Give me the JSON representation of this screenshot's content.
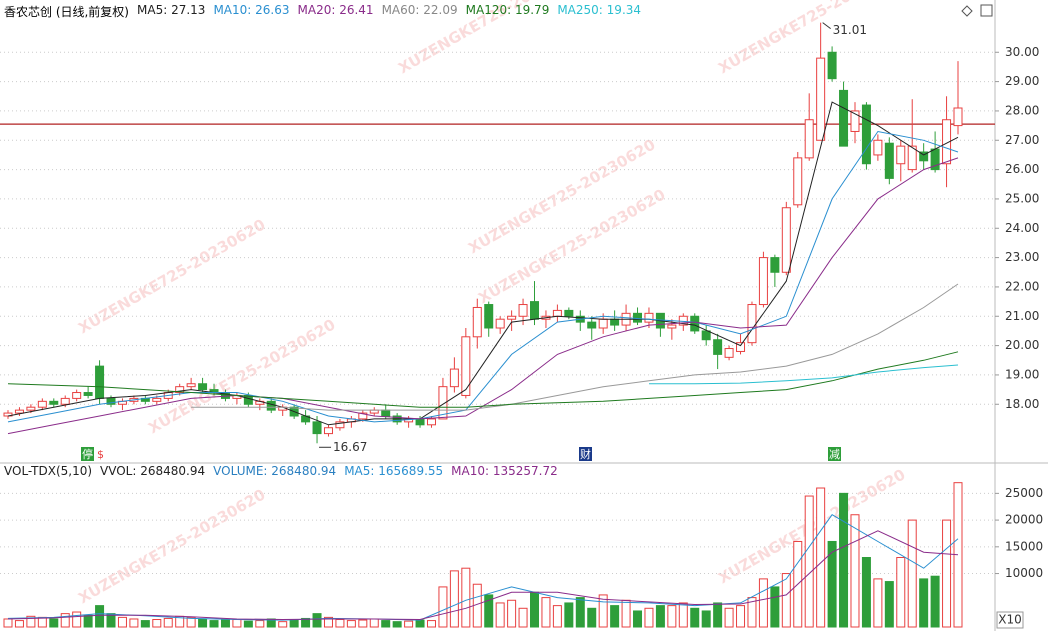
{
  "chart_data": {
    "type": "candlestick",
    "title": "香农芯创 (日线,前复权)",
    "watermark": "XUZENGKE725-20230620",
    "indicators": [
      {
        "name": "MA5:",
        "value": 27.13,
        "color": "#222222"
      },
      {
        "name": "MA10:",
        "value": 26.63,
        "color": "#2a8fd0"
      },
      {
        "name": "MA20:",
        "value": 26.41,
        "color": "#8a2c8a"
      },
      {
        "name": "MA60:",
        "value": 22.09,
        "color": "#888888"
      },
      {
        "name": "MA120:",
        "value": 19.79,
        "color": "#1f7a1f"
      },
      {
        "name": "MA250:",
        "value": 19.34,
        "color": "#2bbfd0"
      }
    ],
    "up_color": "#e84040",
    "down_color": "#2e9e3a",
    "open": [
      17.6,
      17.7,
      17.8,
      17.9,
      18.1,
      18.0,
      18.2,
      18.4,
      19.3,
      18.2,
      18.0,
      18.1,
      18.2,
      18.1,
      18.2,
      18.4,
      18.6,
      18.7,
      18.5,
      18.4,
      18.2,
      18.3,
      18.0,
      18.1,
      17.8,
      17.9,
      17.6,
      17.4,
      17.0,
      17.2,
      17.4,
      17.5,
      17.7,
      17.8,
      17.6,
      17.4,
      17.5,
      17.3,
      17.5,
      18.6,
      18.3,
      20.3,
      21.4,
      20.6,
      20.9,
      21.0,
      21.5,
      20.9,
      21.0,
      21.2,
      21.0,
      20.8,
      20.6,
      20.9,
      20.7,
      21.1,
      20.8,
      21.1,
      20.6,
      20.7,
      21.0,
      20.5,
      20.2,
      19.6,
      19.8,
      20.1,
      21.4,
      23.0,
      22.5,
      24.8,
      26.4,
      27.0,
      30.0,
      28.7,
      27.3,
      28.2,
      26.5,
      26.9,
      26.2,
      26.0,
      26.6,
      26.7,
      26.2,
      27.5
    ],
    "high": [
      17.8,
      17.9,
      18.0,
      18.2,
      18.2,
      18.3,
      18.5,
      18.6,
      19.5,
      18.3,
      18.2,
      18.3,
      18.3,
      18.3,
      18.5,
      18.7,
      18.9,
      18.9,
      18.7,
      18.5,
      18.4,
      18.4,
      18.2,
      18.2,
      18.0,
      18.0,
      17.8,
      17.6,
      17.3,
      17.5,
      17.6,
      17.8,
      17.9,
      18.0,
      17.7,
      17.6,
      17.6,
      17.6,
      18.9,
      19.6,
      20.6,
      21.6,
      21.5,
      21.0,
      21.2,
      21.6,
      22.2,
      21.2,
      21.4,
      21.3,
      21.2,
      21.0,
      21.1,
      21.2,
      21.4,
      21.3,
      21.3,
      21.1,
      20.9,
      21.1,
      21.1,
      20.7,
      20.4,
      20.0,
      20.4,
      21.5,
      23.2,
      23.1,
      24.9,
      26.6,
      28.6,
      31.01,
      30.2,
      29.0,
      28.3,
      28.3,
      27.2,
      27.1,
      27.0,
      28.4,
      26.9,
      27.3,
      28.5,
      29.7
    ],
    "low": [
      17.5,
      17.6,
      17.7,
      17.8,
      17.9,
      17.9,
      18.1,
      18.2,
      18.0,
      17.9,
      17.8,
      18.0,
      18.0,
      18.0,
      18.1,
      18.3,
      18.5,
      18.4,
      18.3,
      18.1,
      18.0,
      17.9,
      17.8,
      17.7,
      17.6,
      17.5,
      17.3,
      16.67,
      16.9,
      17.1,
      17.2,
      17.4,
      17.6,
      17.5,
      17.3,
      17.2,
      17.2,
      17.2,
      17.5,
      18.4,
      18.2,
      19.9,
      20.3,
      20.4,
      20.5,
      20.7,
      20.7,
      20.6,
      20.8,
      20.9,
      20.5,
      20.2,
      20.4,
      20.5,
      20.5,
      20.7,
      20.6,
      20.3,
      20.2,
      20.5,
      20.4,
      20.0,
      19.2,
      19.5,
      19.7,
      20.0,
      21.3,
      22.0,
      22.4,
      24.7,
      26.3,
      27.0,
      29.0,
      26.8,
      26.9,
      26.0,
      26.3,
      25.5,
      25.6,
      25.9,
      26.0,
      25.9,
      25.4,
      27.2
    ],
    "close": [
      17.7,
      17.8,
      17.9,
      18.1,
      18.0,
      18.2,
      18.4,
      18.3,
      18.2,
      18.0,
      18.1,
      18.2,
      18.1,
      18.2,
      18.4,
      18.6,
      18.7,
      18.5,
      18.4,
      18.2,
      18.3,
      18.0,
      18.1,
      17.8,
      17.9,
      17.6,
      17.4,
      17.0,
      17.2,
      17.4,
      17.5,
      17.7,
      17.8,
      17.6,
      17.4,
      17.5,
      17.3,
      17.5,
      18.6,
      19.2,
      20.3,
      21.3,
      20.6,
      20.9,
      21.0,
      21.4,
      20.9,
      21.0,
      21.2,
      21.0,
      20.8,
      20.6,
      20.9,
      20.7,
      21.1,
      20.8,
      21.1,
      20.6,
      20.7,
      21.0,
      20.5,
      20.2,
      19.7,
      19.9,
      20.1,
      21.4,
      23.0,
      22.5,
      24.7,
      26.4,
      27.7,
      29.8,
      29.1,
      26.8,
      28.0,
      26.2,
      27.0,
      25.7,
      26.8,
      26.8,
      26.3,
      26.0,
      27.7,
      28.1
    ],
    "ma_x": [
      0,
      4,
      8,
      12,
      16,
      20,
      24,
      28,
      32,
      36,
      40,
      44,
      48,
      52,
      56,
      60,
      64,
      68,
      72,
      76,
      80,
      83
    ],
    "ma_series": [
      {
        "color": "#222222",
        "values": [
          17.6,
          17.9,
          18.2,
          18.3,
          18.5,
          18.3,
          17.9,
          17.3,
          17.5,
          17.5,
          18.5,
          20.8,
          21.0,
          20.9,
          20.9,
          20.7,
          20.0,
          22.2,
          28.3,
          27.5,
          26.5,
          27.1
        ]
      },
      {
        "color": "#2a8fd0",
        "values": [
          17.4,
          17.7,
          18.0,
          18.2,
          18.4,
          18.4,
          18.1,
          17.6,
          17.4,
          17.5,
          17.8,
          19.7,
          20.8,
          21.0,
          20.9,
          20.8,
          20.4,
          21.0,
          25.0,
          27.3,
          27.0,
          26.6
        ]
      },
      {
        "color": "#8a2c8a",
        "values": [
          17.0,
          17.3,
          17.6,
          17.9,
          18.2,
          18.3,
          18.2,
          17.9,
          17.6,
          17.5,
          17.6,
          18.5,
          19.7,
          20.3,
          20.7,
          20.8,
          20.6,
          20.7,
          23.0,
          25.0,
          26.0,
          26.4
        ]
      },
      {
        "color": "#999999",
        "values": [
          null,
          null,
          null,
          null,
          17.9,
          17.9,
          17.9,
          17.8,
          17.8,
          17.8,
          17.8,
          18.0,
          18.3,
          18.6,
          18.8,
          19.0,
          19.1,
          19.3,
          19.7,
          20.4,
          21.3,
          22.1
        ]
      },
      {
        "color": "#1f7a1f",
        "values": [
          18.7,
          18.65,
          18.6,
          18.5,
          18.4,
          18.3,
          18.2,
          18.1,
          18.0,
          17.9,
          17.9,
          18.0,
          18.05,
          18.1,
          18.2,
          18.3,
          18.4,
          18.5,
          18.8,
          19.2,
          19.5,
          19.79
        ]
      },
      {
        "color": "#2bbfd0",
        "values": [
          null,
          null,
          null,
          null,
          null,
          null,
          null,
          null,
          null,
          null,
          null,
          null,
          null,
          null,
          18.7,
          18.7,
          18.72,
          18.8,
          18.9,
          19.1,
          19.25,
          19.34
        ]
      }
    ],
    "reference_line": 27.55,
    "ylim": [
      16.1,
      31.1
    ],
    "yticks": [
      {
        "value": 18,
        "label": "18.00"
      },
      {
        "value": 19,
        "label": "19.00"
      },
      {
        "value": 20,
        "label": "20.00"
      },
      {
        "value": 21,
        "label": "21.00"
      },
      {
        "value": 22,
        "label": "22.00"
      },
      {
        "value": 23,
        "label": "23.00"
      },
      {
        "value": 24,
        "label": "24.00"
      },
      {
        "value": 25,
        "label": "25.00"
      },
      {
        "value": 26,
        "label": "26.00"
      },
      {
        "value": 27,
        "label": "27.00"
      },
      {
        "value": 28,
        "label": "28.00"
      },
      {
        "value": 29,
        "label": "29.00"
      },
      {
        "value": 30,
        "label": "30.00"
      }
    ],
    "events": [
      "停",
      "$",
      "财",
      "减"
    ],
    "volume": {
      "indicators": [
        {
          "name": "VOL-TDX(5,10)",
          "color": "#222222"
        },
        {
          "name": "VVOL:",
          "value": 268480.94,
          "color": "#222222"
        },
        {
          "name": "VOLUME:",
          "value": 268480.94,
          "color": "#2a7fc0"
        },
        {
          "name": "MA5:",
          "value": 165689.55,
          "color": "#2a8fd0"
        },
        {
          "name": "MA10:",
          "value": 135257.72,
          "color": "#8a2c8a"
        }
      ],
      "values": [
        1500,
        1200,
        2000,
        1800,
        1500,
        2500,
        2800,
        2200,
        4000,
        2500,
        1800,
        1500,
        1200,
        1400,
        1600,
        2000,
        1800,
        1500,
        1200,
        1300,
        1400,
        1100,
        1200,
        1500,
        1000,
        1300,
        1600,
        2500,
        1800,
        1400,
        1200,
        1300,
        1500,
        1200,
        1000,
        1100,
        1300,
        1200,
        7500,
        10500,
        11000,
        8000,
        6000,
        4500,
        5000,
        3500,
        6500,
        5500,
        4000,
        4500,
        5500,
        3500,
        6000,
        4000,
        5000,
        3000,
        3500,
        4000,
        4000,
        4500,
        3500,
        3000,
        4500,
        3500,
        4000,
        5500,
        9000,
        7500,
        10000,
        16000,
        24500,
        26000,
        16000,
        25000,
        21000,
        13000,
        9000,
        8500,
        13000,
        20000,
        9000,
        9500,
        20000,
        27000
      ],
      "ma_series": [
        {
          "color": "#2a8fd0",
          "values": [
            1600,
            1800,
            2500,
            2100,
            1600,
            1400,
            1300,
            1600,
            1500,
            1300,
            5000,
            7500,
            5500,
            4700,
            4500,
            4000,
            4500,
            9000,
            21000,
            16000,
            11000,
            16500
          ]
        },
        {
          "color": "#8a2c8a",
          "values": [
            1500,
            1700,
            2200,
            2200,
            1900,
            1500,
            1400,
            1500,
            1500,
            1400,
            3500,
            6500,
            6500,
            5200,
            4700,
            4200,
            4300,
            6000,
            14000,
            18000,
            14000,
            13500
          ]
        }
      ],
      "ylim": [
        0,
        27500
      ],
      "yticks": [
        10000,
        15000,
        20000,
        25000
      ],
      "scale_label": "X10"
    }
  }
}
